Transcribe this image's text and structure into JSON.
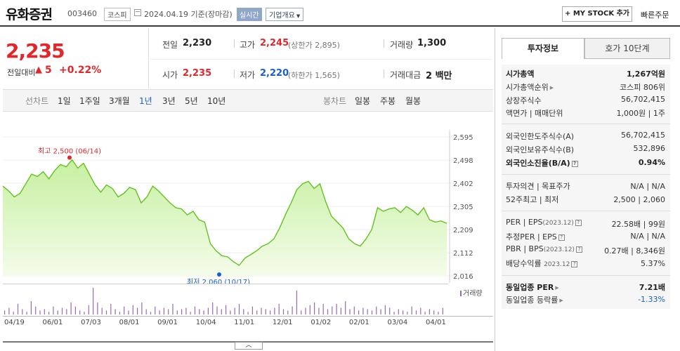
{
  "header": {
    "name": "유화증권",
    "code": "003460",
    "market": "코스피",
    "date": "2024.04.19 기준(장마감)",
    "realtime": "실시간",
    "corp_info": "기업개요",
    "my_stock": "+ MY STOCK 추가",
    "quick_order": "빠른주문"
  },
  "quote": {
    "price": "2,235",
    "change_label": "전일대비",
    "change_arrow": "▲",
    "change_value": "5",
    "change_pct": "+0.22%",
    "prev_close_label": "전일",
    "prev_close": "2,230",
    "high_label": "고가",
    "high": "2,245",
    "upper_limit": "(상한가 2,895)",
    "volume_label": "거래량",
    "volume": "1,300",
    "open_label": "시가",
    "open": "2,235",
    "low_label": "저가",
    "low": "2,220",
    "lower_limit": "(하한가 1,565)",
    "amount_label": "거래대금",
    "amount": "2 백만"
  },
  "period_bar": {
    "line_label": "선차트",
    "line_periods": [
      "1일",
      "1주일",
      "3개월",
      "1년",
      "3년",
      "5년",
      "10년"
    ],
    "selected": "1년",
    "candle_label": "봉차트",
    "candle_periods": [
      "일봉",
      "주봉",
      "월봉"
    ]
  },
  "chart_data": {
    "type": "area",
    "title": "",
    "xlabel": "",
    "ylabel": "",
    "x_ticks": [
      "04/19",
      "06/01",
      "07/03",
      "08/01",
      "09/01",
      "10/04",
      "11/01",
      "12/01",
      "01/02",
      "02/01",
      "03/04",
      "04/01"
    ],
    "y_ticks": [
      2595,
      2498,
      2402,
      2305,
      2209,
      2112,
      2016
    ],
    "ylim": [
      2016,
      2595
    ],
    "max_annotation": "최고 2,500 (06/14)",
    "min_annotation": "최저 2,060 (10/17)",
    "series": [
      {
        "values": [
          2390,
          2370,
          2345,
          2360,
          2400,
          2440,
          2430,
          2450,
          2420,
          2455,
          2480,
          2470,
          2500,
          2465,
          2485,
          2440,
          2395,
          2365,
          2395,
          2380,
          2345,
          2360,
          2385,
          2375,
          2320,
          2345,
          2390,
          2370,
          2345,
          2320,
          2300,
          2295,
          2270,
          2285,
          2250,
          2240,
          2150,
          2120,
          2100,
          2095,
          2075,
          2060,
          2090,
          2105,
          2120,
          2140,
          2150,
          2170,
          2215,
          2270,
          2320,
          2375,
          2400,
          2410,
          2380,
          2400,
          2325,
          2265,
          2240,
          2215,
          2170,
          2150,
          2140,
          2170,
          2210,
          2300,
          2285,
          2295,
          2300,
          2280,
          2305,
          2290,
          2270,
          2300,
          2250,
          2240,
          2245,
          2235
        ]
      }
    ],
    "volume_label": "거래량",
    "volume": [
      3,
      5,
      2,
      8,
      4,
      2,
      10,
      6,
      3,
      4,
      2,
      6,
      3,
      5,
      4,
      9,
      6,
      3,
      2,
      7,
      20,
      9,
      5,
      3,
      8,
      4,
      2,
      6,
      3,
      7,
      5,
      9,
      4,
      2,
      6,
      3,
      5,
      4,
      8,
      3,
      4,
      5,
      2,
      6,
      4,
      3,
      5,
      9,
      6,
      4,
      7,
      3,
      5,
      8,
      4,
      2,
      6,
      3,
      5,
      4,
      3,
      5,
      8,
      4,
      3,
      6,
      18,
      3,
      5,
      7,
      9,
      5,
      8,
      4,
      6,
      8,
      5,
      10,
      4,
      6,
      3,
      5,
      4,
      3,
      6,
      4,
      7,
      5,
      2,
      4,
      3,
      2,
      6,
      3,
      5,
      2,
      4,
      3,
      2,
      5
    ]
  },
  "info_panel": {
    "tab_invest": "투자정보",
    "tab_orderbook": "호가 10단계",
    "market_cap_label": "시가총액",
    "market_cap": "1,267억원",
    "market_cap_rank_label": "시가총액순위",
    "market_cap_rank": "코스피 806위",
    "shares_label": "상장주식수",
    "shares": "56,702,415",
    "par_label": "액면가 | 매매단위",
    "par": "1,000원 | 1주",
    "foreign_limit_label": "외국인한도주식수(A)",
    "foreign_limit": "56,702,415",
    "foreign_hold_label": "외국인보유주식수(B)",
    "foreign_hold": "532,896",
    "foreign_ratio_label": "외국인소진율(B/A)",
    "foreign_ratio": "0.94%",
    "opinion_label": "투자의견 | 목표주가",
    "opinion": "N/A | N/A",
    "w52_label": "52주최고 | 최저",
    "w52": "2,500 | 2,060",
    "per_label": "PER | EPS",
    "per_period": "(2023.12)",
    "per": "22.58배 | 99원",
    "est_label": "추정PER | EPS",
    "est": "N/A | N/A",
    "pbr_label": "PBR | BPS",
    "pbr_period": "(2023.12)",
    "pbr": "0.27배 | 8,346원",
    "div_label": "배당수익률",
    "div_period": "2023.12",
    "div": "5.37%",
    "ind_per_label": "동일업종 PER",
    "ind_per": "7.21배",
    "ind_chg_label": "동일업종 등락률",
    "ind_chg": "-1.33%"
  }
}
